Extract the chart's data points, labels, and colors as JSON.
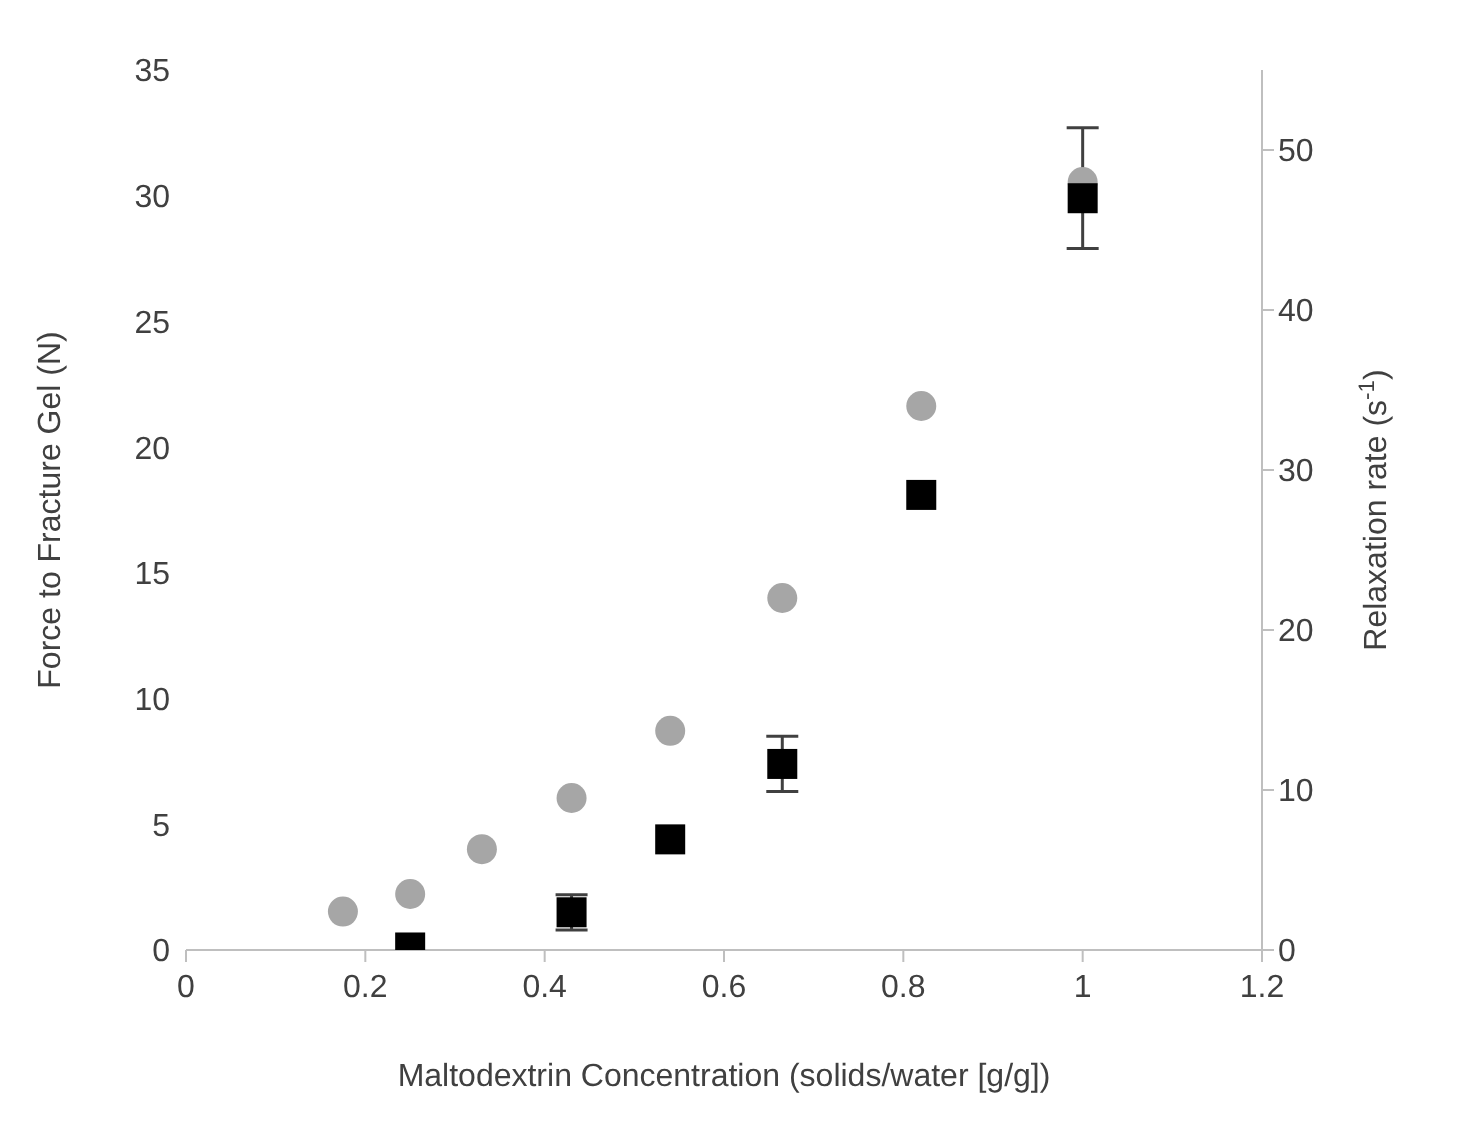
{
  "chart_data": {
    "type": "scatter",
    "xlabel": "Maltodextrin Concentration (solids/water [g/g])",
    "ylabel": "Force to Fracture Gel (N)",
    "y2label": "Relaxation rate (s$^{-1}$)",
    "xlim": [
      0,
      1.2
    ],
    "xticks": [
      0,
      0.2,
      0.4,
      0.6,
      0.8,
      1,
      1.2
    ],
    "ylim": [
      0,
      35
    ],
    "yticks": [
      0,
      5,
      10,
      15,
      20,
      25,
      30,
      35
    ],
    "y2lim": [
      0,
      55
    ],
    "y2ticks": [
      0,
      10,
      20,
      30,
      40,
      50
    ],
    "series": [
      {
        "color": "#a6a6a6",
        "marker": "circle",
        "axis": "y2",
        "x": [
          0.175,
          0.25,
          0.33,
          0.43,
          0.54,
          0.665,
          0.82,
          1.0
        ],
        "values": [
          2.4,
          3.5,
          6.3,
          9.5,
          13.7,
          22,
          34,
          48
        ]
      },
      {
        "color": "#000000",
        "marker": "square",
        "x": [
          0.25,
          0.43,
          0.54,
          0.665,
          0.82,
          1.0
        ],
        "values": [
          0.1,
          1.5,
          4.4,
          7.4,
          18.1,
          29.9
        ],
        "errors": [
          null,
          0.7,
          null,
          1.1,
          null,
          [
            27.9,
            32.7
          ]
        ]
      }
    ]
  }
}
